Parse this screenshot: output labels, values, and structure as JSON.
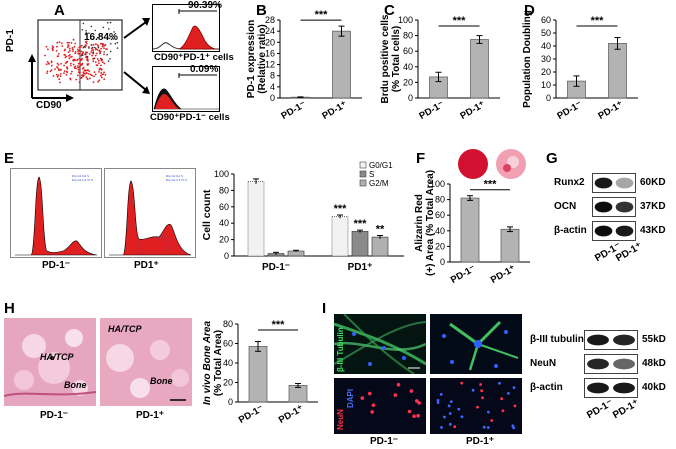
{
  "panels": {
    "A": {
      "letter": "A",
      "yaxis": "PD-1",
      "xaxis": "CD90",
      "gate_pct": "16.84%",
      "pos_pct": "90.39%",
      "neg_pct": "0.09%",
      "pos_label": "CD90⁺PD-1⁺ cells",
      "neg_label": "CD90⁺PD-1⁻ cells"
    },
    "B": {
      "letter": "B"
    },
    "C": {
      "letter": "C"
    },
    "D": {
      "letter": "D"
    },
    "E": {
      "letter": "E",
      "hist1_label": "PD-1⁻",
      "hist2_label": "PD1⁺"
    },
    "F": {
      "letter": "F"
    },
    "G": {
      "letter": "G",
      "lanes": [
        "PD-1⁻",
        "PD-1⁺"
      ],
      "rows": [
        {
          "name": "Runx2",
          "kd": "60KD"
        },
        {
          "name": "OCN",
          "kd": "37KD"
        },
        {
          "name": "β-actin",
          "kd": "43KD"
        }
      ]
    },
    "H": {
      "letter": "H",
      "img1_label": "PD-1⁻",
      "img2_label": "PD-1⁺",
      "tissue_text1": "HA/TCP",
      "tissue_text2": "Bone"
    },
    "I": {
      "letter": "I",
      "stain1": "β-III Tubulin",
      "stain2": "NeuN",
      "stain3": "DAPI",
      "col1": "PD-1⁻",
      "col2": "PD-1⁺",
      "lanes": [
        "PD-1⁻",
        "PD-1⁺"
      ],
      "rows": [
        {
          "name": "β-III tubulin",
          "kd": "55kD"
        },
        {
          "name": "NeuN",
          "kd": "48kD"
        },
        {
          "name": "β-actin",
          "kd": "40kD"
        }
      ]
    }
  },
  "chart_data": [
    {
      "id": "B",
      "type": "bar",
      "categories": [
        "PD-1⁻",
        "PD-1⁺"
      ],
      "values": [
        0.3,
        24
      ],
      "errors": [
        0.1,
        1.8
      ],
      "ylabel": "PD-1 expression (Relative ratio)",
      "ylim": [
        0,
        28
      ],
      "yticks": [
        0,
        4,
        8,
        12,
        16,
        20,
        24,
        28
      ],
      "sig": "***"
    },
    {
      "id": "C",
      "type": "bar",
      "categories": [
        "PD-1⁻",
        "PD-1⁺"
      ],
      "values": [
        27,
        75
      ],
      "errors": [
        6,
        5
      ],
      "ylabel": "Brdu positive cells (% Total cells)",
      "ylim": [
        0,
        100
      ],
      "yticks": [
        0,
        20,
        40,
        60,
        80,
        100
      ],
      "sig": "***"
    },
    {
      "id": "D",
      "type": "bar",
      "categories": [
        "PD-1⁻",
        "PD-1⁺"
      ],
      "values": [
        13,
        42
      ],
      "errors": [
        4,
        4.5
      ],
      "ylabel": "Population Doubling",
      "ylim": [
        0,
        60
      ],
      "yticks": [
        0,
        10,
        20,
        30,
        40,
        50,
        60
      ],
      "sig": "***"
    },
    {
      "id": "E",
      "type": "bar",
      "categories": [
        "PD-1⁻",
        "PD1⁺"
      ],
      "series": [
        {
          "name": "G0/G1",
          "values": [
            91,
            48
          ],
          "errors": [
            3,
            2
          ]
        },
        {
          "name": "S",
          "values": [
            3,
            30
          ],
          "errors": [
            1.5,
            1.5
          ]
        },
        {
          "name": "G2/M",
          "values": [
            6,
            23
          ],
          "errors": [
            1,
            2
          ]
        }
      ],
      "sig": [
        "",
        "***",
        "***",
        "**"
      ],
      "ylabel": "Cell count",
      "ylim": [
        0,
        100
      ],
      "yticks": [
        0,
        20,
        40,
        60,
        80,
        100
      ],
      "legend": "top-right"
    },
    {
      "id": "F",
      "type": "bar",
      "categories": [
        "PD-1⁻",
        "PD-1⁺"
      ],
      "values": [
        82,
        42
      ],
      "errors": [
        3,
        3
      ],
      "ylabel": "Alizarin Red (+) Area (% Total Area)",
      "ylim": [
        0,
        100
      ],
      "yticks": [
        0,
        20,
        40,
        60,
        80,
        100
      ],
      "sig": "***"
    },
    {
      "id": "H",
      "type": "bar",
      "categories": [
        "PD-1⁻",
        "PD-1⁺"
      ],
      "values": [
        57,
        17
      ],
      "errors": [
        5,
        2
      ],
      "ylabel": "In vivo Bone Area (% Total Area)",
      "ylim": [
        0,
        80
      ],
      "yticks": [
        0,
        20,
        40,
        60,
        80
      ],
      "sig": "***"
    }
  ],
  "colors": {
    "bar": "#b3b3b3",
    "flow_red": "#e02020",
    "tissue": "#e8a8c0"
  }
}
